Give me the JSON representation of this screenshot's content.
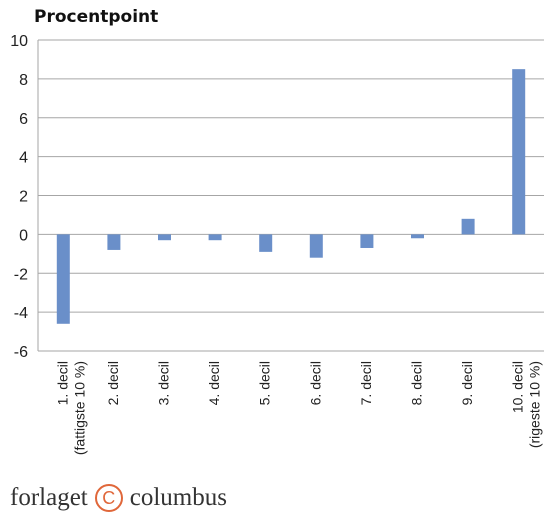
{
  "chart_data": {
    "type": "bar",
    "ylabel": "Procentpoint",
    "categories": [
      [
        "1. decil",
        "(fattigste 10 %)"
      ],
      [
        "2. decil"
      ],
      [
        "3. decil"
      ],
      [
        "4. decil"
      ],
      [
        "5. decil"
      ],
      [
        "6. decil"
      ],
      [
        "7. decil"
      ],
      [
        "8. decil"
      ],
      [
        "9. decil"
      ],
      [
        "10. decil",
        "(rigeste 10 %)"
      ]
    ],
    "values": [
      -4.6,
      -0.8,
      -0.3,
      -0.3,
      -0.9,
      -1.2,
      -0.7,
      -0.2,
      0.8,
      8.5
    ],
    "ylim": [
      -6,
      10
    ],
    "yticks": [
      10,
      8,
      6,
      4,
      2,
      0,
      -2,
      -4,
      -6
    ],
    "grid": true,
    "bar_color": "#6a8fc9",
    "grid_color": "#a6a6a6"
  },
  "footer": {
    "brand_left": "forlaget",
    "brand_icon": "copyright-icon",
    "brand_right": "columbus"
  }
}
